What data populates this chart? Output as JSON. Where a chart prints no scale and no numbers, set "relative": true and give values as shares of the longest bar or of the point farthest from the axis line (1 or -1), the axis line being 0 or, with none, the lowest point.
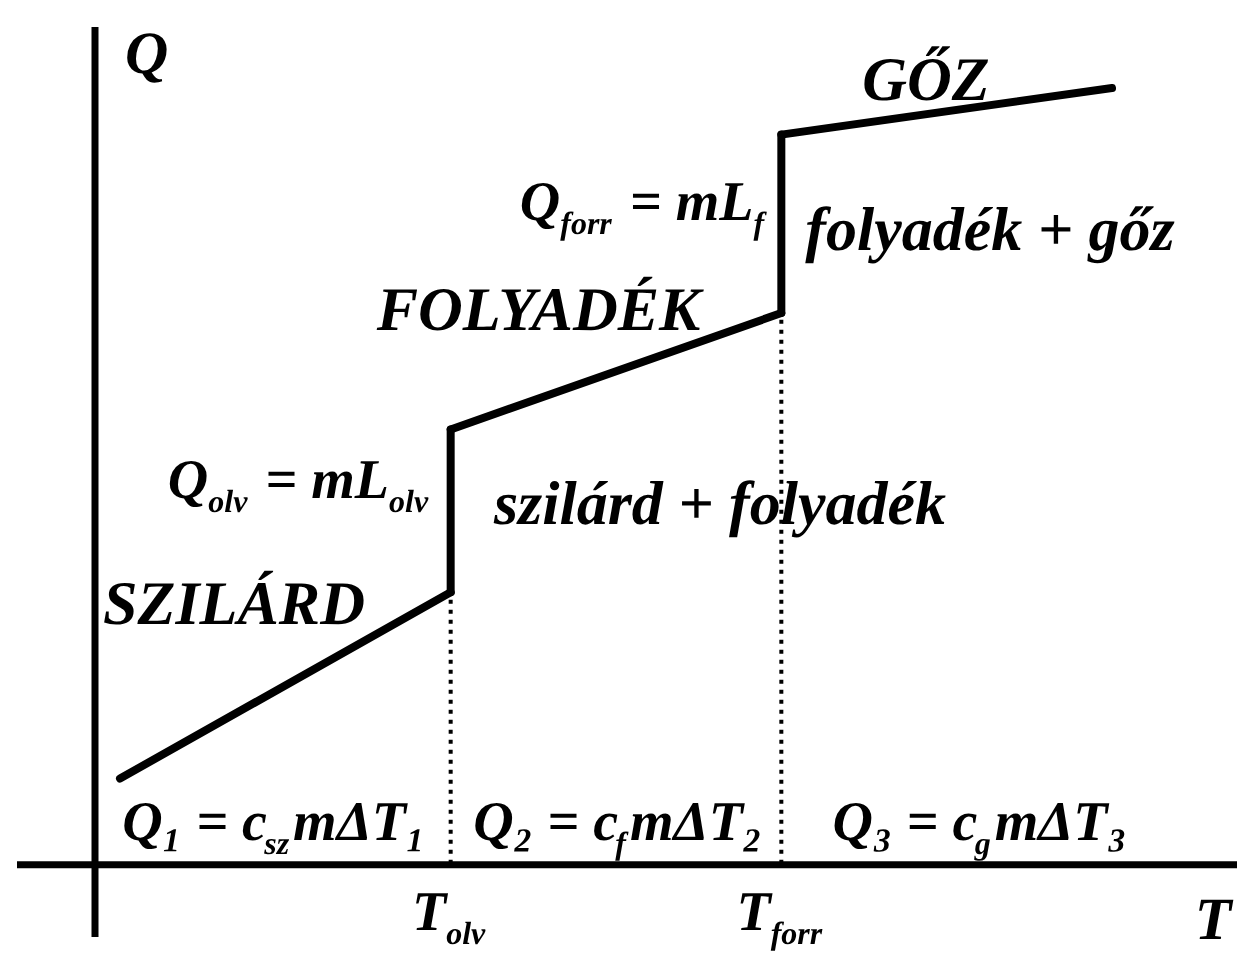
{
  "chart_data": {
    "type": "line",
    "relative": true,
    "xlabel": "T",
    "ylabel": "Q",
    "categories": [
      null,
      "T$_{olv}$",
      "T$_{forr}$",
      null
    ],
    "series": [
      {
        "color": "#000000",
        "values": [
          0.11,
          0.35,
          null,
          null
        ]
      },
      {
        "color": "#000000",
        "values": [
          null,
          0.56,
          0.71,
          null
        ]
      },
      {
        "color": "#000000",
        "values": [
          null,
          null,
          0.94,
          1.0
        ]
      },
      {
        "color": "#000000",
        "x": [
          "T$_{olv}$",
          "T$_{olv}$"
        ],
        "values": [
          0.35,
          0.56
        ]
      },
      {
        "color": "#000000",
        "x": [
          "T$_{forr}$",
          "T$_{forr}$"
        ],
        "values": [
          0.71,
          0.94
        ]
      }
    ],
    "ref_lines": [
      {
        "axis": "x",
        "value": "T$_{olv}$",
        "line_style": "dotted",
        "color": "#000000"
      },
      {
        "axis": "x",
        "value": "T$_{forr}$",
        "line_style": "dotted",
        "color": "#000000"
      }
    ],
    "annotations": [
      "GŐZ",
      "Q$_{forr}$ = mL$_{f}$",
      "folyadék + gőz",
      "FOLYADÉK",
      "Q$_{olv}$ = mL$_{olv}$",
      "szilárd + folyadék",
      "SZILÁRD",
      "Q₁ = c$_{sz}$mΔT₁",
      "Q₂ = c$_{f}$mΔT₂",
      "Q₃ = c$_{g}$mΔT₃"
    ]
  }
}
